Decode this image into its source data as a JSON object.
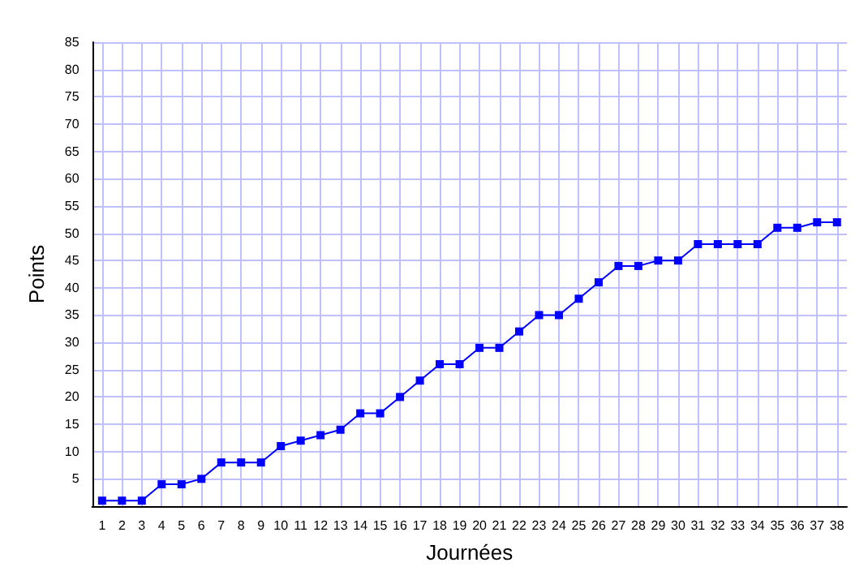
{
  "chart_data": {
    "type": "line",
    "xlabel": "Journées",
    "ylabel": "Points",
    "x": [
      1,
      2,
      3,
      4,
      5,
      6,
      7,
      8,
      9,
      10,
      11,
      12,
      13,
      14,
      15,
      16,
      17,
      18,
      19,
      20,
      21,
      22,
      23,
      24,
      25,
      26,
      27,
      28,
      29,
      30,
      31,
      32,
      33,
      34,
      35,
      36,
      37,
      38
    ],
    "series": [
      {
        "color": "#0000ff",
        "values": [
          1,
          1,
          1,
          4,
          4,
          5,
          8,
          8,
          8,
          11,
          12,
          13,
          14,
          17,
          17,
          20,
          23,
          26,
          26,
          29,
          29,
          32,
          35,
          35,
          38,
          41,
          44,
          44,
          45,
          45,
          48,
          48,
          48,
          48,
          51,
          51,
          52,
          52
        ]
      }
    ],
    "xlim": [
      0.5,
      38.5
    ],
    "xticks": [
      1,
      2,
      3,
      4,
      5,
      6,
      7,
      8,
      9,
      10,
      11,
      12,
      13,
      14,
      15,
      16,
      17,
      18,
      19,
      20,
      21,
      22,
      23,
      24,
      25,
      26,
      27,
      28,
      29,
      30,
      31,
      32,
      33,
      34,
      35,
      36,
      37,
      38
    ],
    "ylim": [
      0,
      85
    ],
    "yticks": [
      5,
      10,
      15,
      20,
      25,
      30,
      35,
      40,
      45,
      50,
      55,
      60,
      65,
      70,
      75,
      80,
      85
    ],
    "grid": true,
    "marker": "square",
    "line_style": "solid"
  }
}
